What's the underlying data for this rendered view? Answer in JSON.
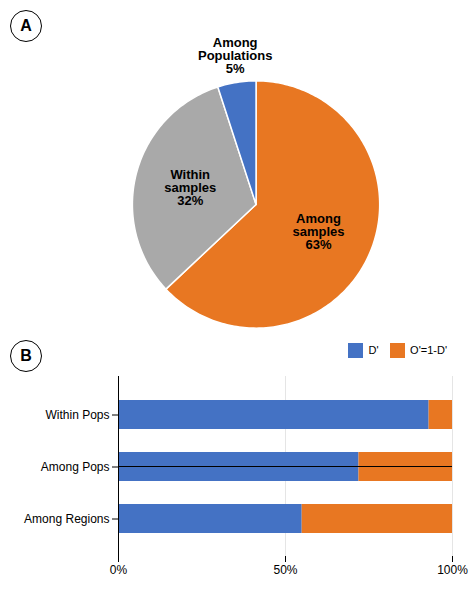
{
  "chart_data": [
    {
      "type": "pie",
      "title": "A",
      "categories": [
        "Among\nsamples",
        "Within\nsamples",
        "Among\nPopulations"
      ],
      "values": [
        63,
        32,
        5
      ],
      "value_labels": [
        "63%",
        "32%",
        "5%"
      ],
      "colors": [
        "#E87722",
        "#A9A9A9",
        "#4472C4"
      ],
      "data_labels": true
    },
    {
      "type": "bar",
      "title": "B",
      "orientation": "horizontal",
      "stacked": true,
      "categories": [
        "Within Pops",
        "Among Pops",
        "Among Regions"
      ],
      "series": [
        {
          "name": "D'",
          "color": "#4472C4",
          "values": [
            0.93,
            0.72,
            0.55
          ]
        },
        {
          "name": "O'=1-D'",
          "color": "#E87722",
          "values": [
            0.07,
            0.28,
            0.45
          ]
        }
      ],
      "xlim": [
        0,
        1
      ],
      "xticks": [
        {
          "value": 0,
          "label": "0%"
        },
        {
          "value": 0.5,
          "label": "50%"
        },
        {
          "value": 1,
          "label": "100%"
        }
      ],
      "grid": true,
      "legend": "upper right"
    }
  ]
}
